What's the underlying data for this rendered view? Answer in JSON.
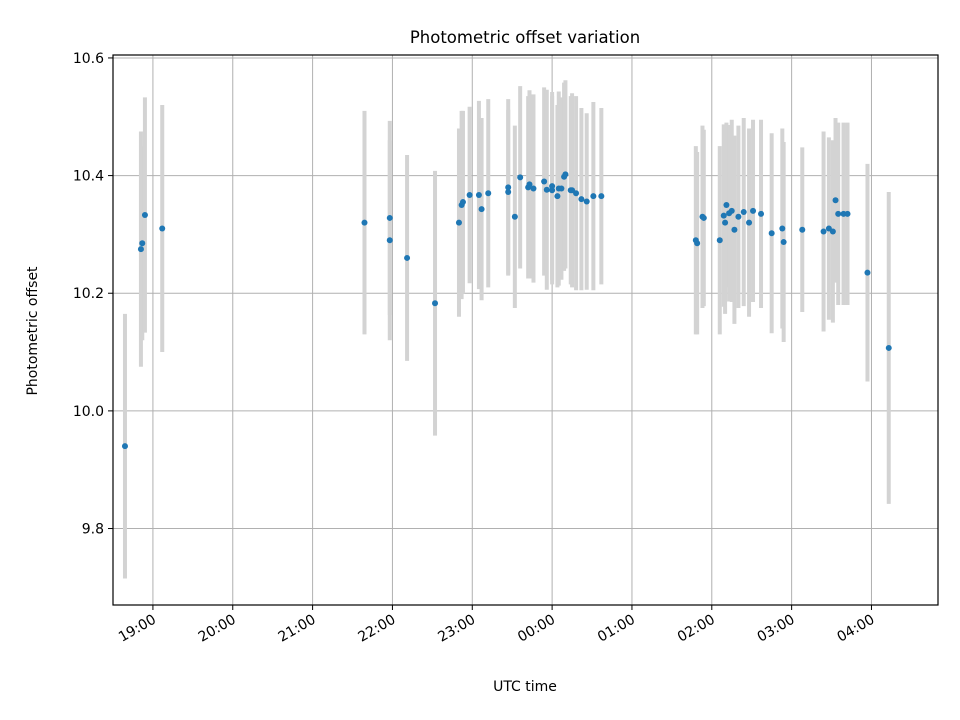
{
  "chart_data": {
    "type": "scatter",
    "title": "Photometric offset variation",
    "xlabel": "UTC time",
    "ylabel": "Photometric offset",
    "grid": true,
    "colors": {
      "point": "#1f77b4",
      "errorbar": "#d3d3d3",
      "grid": "#b0b0b0",
      "axes": "#000000"
    },
    "xlim": [
      "18:30",
      "04:50"
    ],
    "ylim": [
      9.67,
      10.605
    ],
    "x_ticks": [
      "19:00",
      "20:00",
      "21:00",
      "22:00",
      "23:00",
      "00:00",
      "01:00",
      "02:00",
      "03:00",
      "04:00"
    ],
    "y_ticks": [
      "9.8",
      "10.0",
      "10.2",
      "10.4",
      "10.6"
    ],
    "series": [
      {
        "x": [
          "18:39",
          "18:51",
          "18:52",
          "18:54",
          "19:07",
          "21:39",
          "21:58",
          "21:58",
          "22:11",
          "22:32",
          "22:50",
          "22:52",
          "22:53",
          "22:58",
          "23:05",
          "23:07",
          "23:12",
          "23:27",
          "23:27",
          "23:32",
          "23:36",
          "23:42",
          "23:43",
          "23:46",
          "23:54",
          "23:56",
          "00:00",
          "00:00",
          "00:04",
          "00:05",
          "00:07",
          "00:09",
          "00:10",
          "00:14",
          "00:15",
          "00:18",
          "00:22",
          "00:26",
          "00:31",
          "00:37",
          "01:48",
          "01:49",
          "01:53",
          "01:54",
          "02:06",
          "02:09",
          "02:10",
          "02:11",
          "02:13",
          "02:15",
          "02:17",
          "02:20",
          "02:24",
          "02:28",
          "02:31",
          "02:37",
          "02:45",
          "02:53",
          "02:54",
          "03:08",
          "03:24",
          "03:28",
          "03:31",
          "03:33",
          "03:35",
          "03:39",
          "03:42",
          "03:57",
          "04:13"
        ],
        "y": [
          9.94,
          10.275,
          10.285,
          10.333,
          10.31,
          10.32,
          10.328,
          10.29,
          10.26,
          10.183,
          10.32,
          10.35,
          10.355,
          10.367,
          10.367,
          10.343,
          10.37,
          10.38,
          10.372,
          10.33,
          10.397,
          10.38,
          10.385,
          10.378,
          10.39,
          10.376,
          10.375,
          10.382,
          10.365,
          10.378,
          10.378,
          10.398,
          10.402,
          10.375,
          10.375,
          10.37,
          10.36,
          10.356,
          10.365,
          10.365,
          10.29,
          10.285,
          10.33,
          10.328,
          10.29,
          10.332,
          10.32,
          10.35,
          10.336,
          10.34,
          10.308,
          10.33,
          10.338,
          10.32,
          10.34,
          10.335,
          10.302,
          10.31,
          10.287,
          10.308,
          10.305,
          10.31,
          10.305,
          10.358,
          10.335,
          10.335,
          10.335,
          10.235,
          10.107
        ],
        "yerr": [
          0.225,
          0.2,
          0.165,
          0.2,
          0.21,
          0.19,
          0.165,
          0.17,
          0.175,
          0.225,
          0.16,
          0.16,
          0.155,
          0.15,
          0.16,
          0.155,
          0.16,
          0.15,
          0.14,
          0.155,
          0.155,
          0.155,
          0.16,
          0.16,
          0.16,
          0.17,
          0.16,
          0.16,
          0.155,
          0.165,
          0.155,
          0.16,
          0.16,
          0.16,
          0.165,
          0.165,
          0.155,
          0.15,
          0.16,
          0.15,
          0.16,
          0.155,
          0.155,
          0.15,
          0.16,
          0.155,
          0.155,
          0.14,
          0.15,
          0.155,
          0.16,
          0.155,
          0.16,
          0.16,
          0.155,
          0.16,
          0.17,
          0.17,
          0.17,
          0.14,
          0.17,
          0.155,
          0.155,
          0.14,
          0.155,
          0.155,
          0.155,
          0.185,
          0.265
        ]
      }
    ]
  }
}
